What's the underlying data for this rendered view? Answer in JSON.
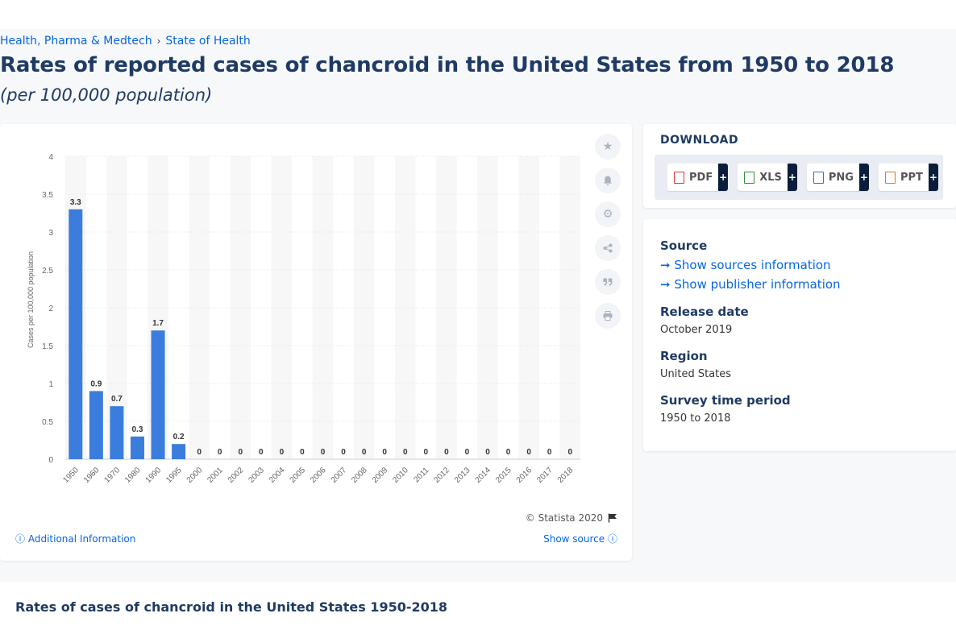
{
  "breadcrumb": {
    "items": [
      "Health, Pharma & Medtech",
      "State of Health"
    ],
    "separator": "›"
  },
  "page": {
    "title": "Rates of reported cases of chancroid in the United States from 1950 to 2018",
    "subtitle": "(per 100,000 population)"
  },
  "chart_data": {
    "type": "bar",
    "categories": [
      "1950",
      "1960",
      "1970",
      "1980",
      "1990",
      "1995",
      "2000",
      "2001",
      "2002",
      "2003",
      "2004",
      "2005",
      "2006",
      "2007",
      "2008",
      "2009",
      "2010",
      "2011",
      "2012",
      "2013",
      "2014",
      "2015",
      "2016",
      "2017",
      "2018"
    ],
    "values": [
      3.3,
      0.9,
      0.7,
      0.3,
      1.7,
      0.2,
      0,
      0,
      0,
      0,
      0,
      0,
      0,
      0,
      0,
      0,
      0,
      0,
      0,
      0,
      0,
      0,
      0,
      0,
      0
    ],
    "ylabel": "Cases per 100,000 population",
    "ylim": [
      0,
      4
    ],
    "yticks": [
      "0",
      "0.5",
      "1",
      "1.5",
      "2",
      "2.5",
      "3",
      "3.5",
      "4"
    ],
    "grid": true,
    "bar_color": "#3b7ddd"
  },
  "chart_footer": {
    "credit": "© Statista 2020",
    "additional_info": "Additional Information",
    "show_source": "Show source"
  },
  "download": {
    "title": "DOWNLOAD",
    "buttons": [
      "PDF",
      "XLS",
      "PNG",
      "PPT"
    ],
    "plus": "+"
  },
  "info": {
    "source_label": "Source",
    "show_sources": "Show sources information",
    "show_publisher": "Show publisher information",
    "release_label": "Release date",
    "release_value": "October 2019",
    "region_label": "Region",
    "region_value": "United States",
    "survey_label": "Survey time period",
    "survey_value": "1950 to 2018"
  },
  "bottom": {
    "title": "Rates of cases of chancroid in the United States 1950-2018"
  },
  "icons": {
    "tools": [
      "star-icon",
      "bell-icon",
      "gear-icon",
      "share-icon",
      "quote-icon",
      "print-icon"
    ]
  }
}
